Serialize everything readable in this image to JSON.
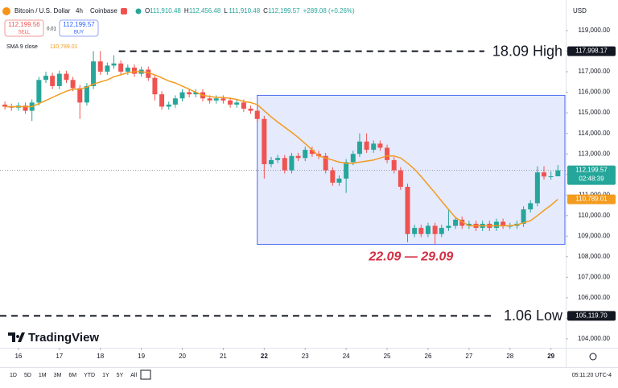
{
  "header": {
    "symbol": "Bitcoin / U.S. Dollar",
    "interval": "4h",
    "exchange": "Coinbase",
    "ohlc": [
      {
        "key": "O",
        "value": "111,910.48"
      },
      {
        "key": "H",
        "value": "112,456.48"
      },
      {
        "key": "L",
        "value": "111,910.48"
      },
      {
        "key": "C",
        "value": "112,199.57"
      }
    ],
    "change": "+289.08 (+0.26%)",
    "sell_price": "112,199.56",
    "sell_label": "SELL",
    "spread": "0.01",
    "buy_price": "112,199.57",
    "buy_label": "BUY",
    "currency": "USD"
  },
  "chart_data": {
    "type": "candlestick",
    "x": [
      15.67,
      15.83,
      16,
      16.17,
      16.33,
      16.5,
      16.67,
      16.83,
      17,
      17.17,
      17.33,
      17.5,
      17.67,
      17.83,
      18,
      18.17,
      18.33,
      18.5,
      18.67,
      18.83,
      19,
      19.17,
      19.33,
      19.5,
      19.67,
      19.83,
      20,
      20.17,
      20.33,
      20.5,
      20.67,
      20.83,
      21,
      21.17,
      21.33,
      21.5,
      21.67,
      21.83,
      22,
      22.17,
      22.33,
      22.5,
      22.67,
      22.83,
      23,
      23.17,
      23.33,
      23.5,
      23.67,
      23.83,
      24,
      24.17,
      24.33,
      24.5,
      24.67,
      24.83,
      25,
      25.17,
      25.33,
      25.5,
      25.67,
      25.83,
      26,
      26.17,
      26.33,
      26.5,
      26.67,
      26.83,
      27,
      27.17,
      27.33,
      27.5,
      27.67,
      27.83,
      28,
      28.17,
      28.33,
      28.5,
      28.67,
      28.83,
      29,
      29.17
    ],
    "open": [
      115400,
      115300,
      115250,
      115350,
      115100,
      115500,
      116600,
      116800,
      116300,
      116900,
      116600,
      116200,
      115500,
      116300,
      117500,
      117000,
      117300,
      117400,
      117000,
      117200,
      116900,
      117100,
      116700,
      115900,
      115300,
      115400,
      115700,
      116000,
      115900,
      116000,
      115700,
      115600,
      115700,
      115600,
      115400,
      115500,
      115200,
      115100,
      114700,
      112500,
      112700,
      112800,
      112200,
      112900,
      112800,
      113200,
      113000,
      112900,
      112200,
      111600,
      111800,
      112600,
      113000,
      113600,
      113200,
      113500,
      113300,
      112700,
      112200,
      111400,
      109100,
      109400,
      109100,
      109500,
      109100,
      109400,
      109500,
      109800,
      109500,
      109600,
      109400,
      109600,
      109400,
      109700,
      109500,
      109500,
      109600,
      110300,
      110600,
      112100,
      111900,
      111910.48
    ],
    "high": [
      115550,
      115450,
      115500,
      115500,
      115650,
      116750,
      117000,
      116950,
      117050,
      117050,
      116750,
      116350,
      116450,
      118000,
      118000,
      117450,
      117800,
      117550,
      117350,
      117350,
      117250,
      117250,
      116850,
      116050,
      115550,
      115850,
      116150,
      116150,
      116150,
      116150,
      115850,
      115850,
      115850,
      115750,
      115650,
      115650,
      115350,
      115250,
      114850,
      112850,
      112950,
      112950,
      113050,
      113050,
      113350,
      113350,
      113150,
      113050,
      112350,
      111950,
      112750,
      113150,
      114000,
      114000,
      113650,
      113650,
      113450,
      112850,
      112350,
      111550,
      109550,
      109550,
      109650,
      109650,
      109550,
      110300,
      109950,
      109950,
      109750,
      109750,
      109750,
      109750,
      109850,
      109850,
      109650,
      109750,
      110450,
      110750,
      112400,
      112400,
      112150,
      112456.48
    ],
    "low": [
      115150,
      115100,
      115100,
      114950,
      114600,
      115350,
      116450,
      116150,
      116150,
      116450,
      116050,
      114700,
      115350,
      116150,
      116850,
      116850,
      117150,
      116850,
      116850,
      116750,
      116750,
      116550,
      115600,
      115150,
      115150,
      115250,
      115550,
      115750,
      115750,
      115550,
      115450,
      115450,
      115450,
      115250,
      115250,
      115050,
      114950,
      114550,
      111800,
      112350,
      112550,
      112050,
      112050,
      112650,
      112650,
      112850,
      112750,
      112050,
      111450,
      111450,
      111100,
      112450,
      112850,
      113050,
      113050,
      113150,
      112550,
      112050,
      111250,
      108700,
      108950,
      108950,
      108950,
      108600,
      108950,
      109250,
      109350,
      109350,
      109350,
      109250,
      109250,
      109250,
      109250,
      109350,
      109350,
      109350,
      109450,
      110150,
      110450,
      111750,
      111750,
      111910.48
    ],
    "close": [
      115300,
      115250,
      115350,
      115100,
      115500,
      116600,
      116800,
      116300,
      116900,
      116600,
      116200,
      115500,
      116300,
      117500,
      117000,
      117300,
      117400,
      117000,
      117200,
      116900,
      117100,
      116700,
      115900,
      115300,
      115400,
      115700,
      116000,
      115900,
      116000,
      115700,
      115600,
      115700,
      115600,
      115400,
      115500,
      115200,
      115100,
      114700,
      112500,
      112700,
      112800,
      112200,
      112900,
      112800,
      113200,
      113000,
      112900,
      112200,
      111600,
      111800,
      112600,
      113000,
      113600,
      113200,
      113500,
      113300,
      112700,
      112200,
      111400,
      109100,
      109400,
      109100,
      109500,
      109100,
      109400,
      109500,
      109800,
      109500,
      109600,
      109400,
      109600,
      109400,
      109700,
      109500,
      109500,
      109600,
      110300,
      110600,
      112100,
      111900,
      111910.48,
      112199.57
    ],
    "up_color": "#26a69a",
    "down_color": "#ef5350",
    "sma": {
      "name": "SMA 9 close",
      "color": "#f29b1e",
      "value_label": "110,789.01",
      "values": [
        115300,
        115300,
        115300,
        115300,
        115300,
        115450,
        115600,
        115750,
        115900,
        116050,
        116150,
        116150,
        116250,
        116400,
        116500,
        116600,
        116750,
        116850,
        116950,
        117000,
        117000,
        116950,
        116850,
        116700,
        116550,
        116450,
        116300,
        116150,
        116000,
        115850,
        115800,
        115750,
        115750,
        115700,
        115650,
        115550,
        115500,
        115400,
        115100,
        114800,
        114550,
        114300,
        114050,
        113800,
        113500,
        113200,
        112900,
        112800,
        112700,
        112600,
        112550,
        112550,
        112600,
        112650,
        112700,
        112800,
        112900,
        112900,
        112800,
        112550,
        112250,
        111900,
        111500,
        111100,
        110700,
        110300,
        109900,
        109700,
        109500,
        109500,
        109500,
        109500,
        109500,
        109500,
        109500,
        109550,
        109650,
        109750,
        110000,
        110250,
        110500,
        110789.01
      ]
    },
    "xlim": [
      15.55,
      29.36
    ],
    "ylim": [
      103567,
      120293
    ],
    "xticks": [
      16,
      17,
      18,
      19,
      20,
      21,
      22,
      23,
      24,
      25,
      26,
      27,
      28,
      29
    ],
    "bold_xticks": [
      22,
      29
    ],
    "yticks": [
      {
        "value": 104000,
        "label": "104,000.00"
      },
      {
        "value": 105000,
        "label": "105,000.00"
      },
      {
        "value": 106000,
        "label": "106,000.00"
      },
      {
        "value": 107000,
        "label": "107,000.00"
      },
      {
        "value": 108000,
        "label": "108,000.00"
      },
      {
        "value": 109000,
        "label": "109,000.00"
      },
      {
        "value": 110000,
        "label": "110,000.00"
      },
      {
        "value": 111000,
        "label": "111,000.00"
      },
      {
        "value": 112000,
        "label": "112,000.00"
      },
      {
        "value": 113000,
        "label": "113,000.00"
      },
      {
        "value": 114000,
        "label": "114,000.00"
      },
      {
        "value": 115000,
        "label": "115,000.00"
      },
      {
        "value": 116000,
        "label": "116,000.00"
      },
      {
        "value": 117000,
        "label": "117,000.00"
      },
      {
        "value": 118000,
        "label": "118,000.00"
      },
      {
        "value": 119000,
        "label": "119,000.00"
      }
    ],
    "grid": false,
    "levels": [
      {
        "value": 117998.17,
        "label": "117,998.17",
        "text": "18.09 High",
        "from": 18.45
      },
      {
        "value": 105119.7,
        "label": "105,119.70",
        "text": "1.06 Low",
        "from": 15.55
      }
    ],
    "price_tags": [
      {
        "value": 112199.57,
        "label": "112,199.57",
        "sub": "02:48:39",
        "color": "#26a69a"
      },
      {
        "value": 110789.01,
        "label": "110,789.01",
        "color": "#f29b1e"
      }
    ],
    "range_box": {
      "x": [
        21.83,
        29.34
      ],
      "y": [
        108600,
        115850
      ],
      "label": "22.09 — 29.09",
      "color": "#4a6cf0",
      "label_color": "#d32f44"
    }
  },
  "toolbar": {
    "brand": "TradingView",
    "ranges": [
      "1D",
      "5D",
      "1M",
      "3M",
      "6M",
      "YTD",
      "1Y",
      "5Y",
      "All"
    ],
    "time": "05:11:20 UTC-4"
  }
}
